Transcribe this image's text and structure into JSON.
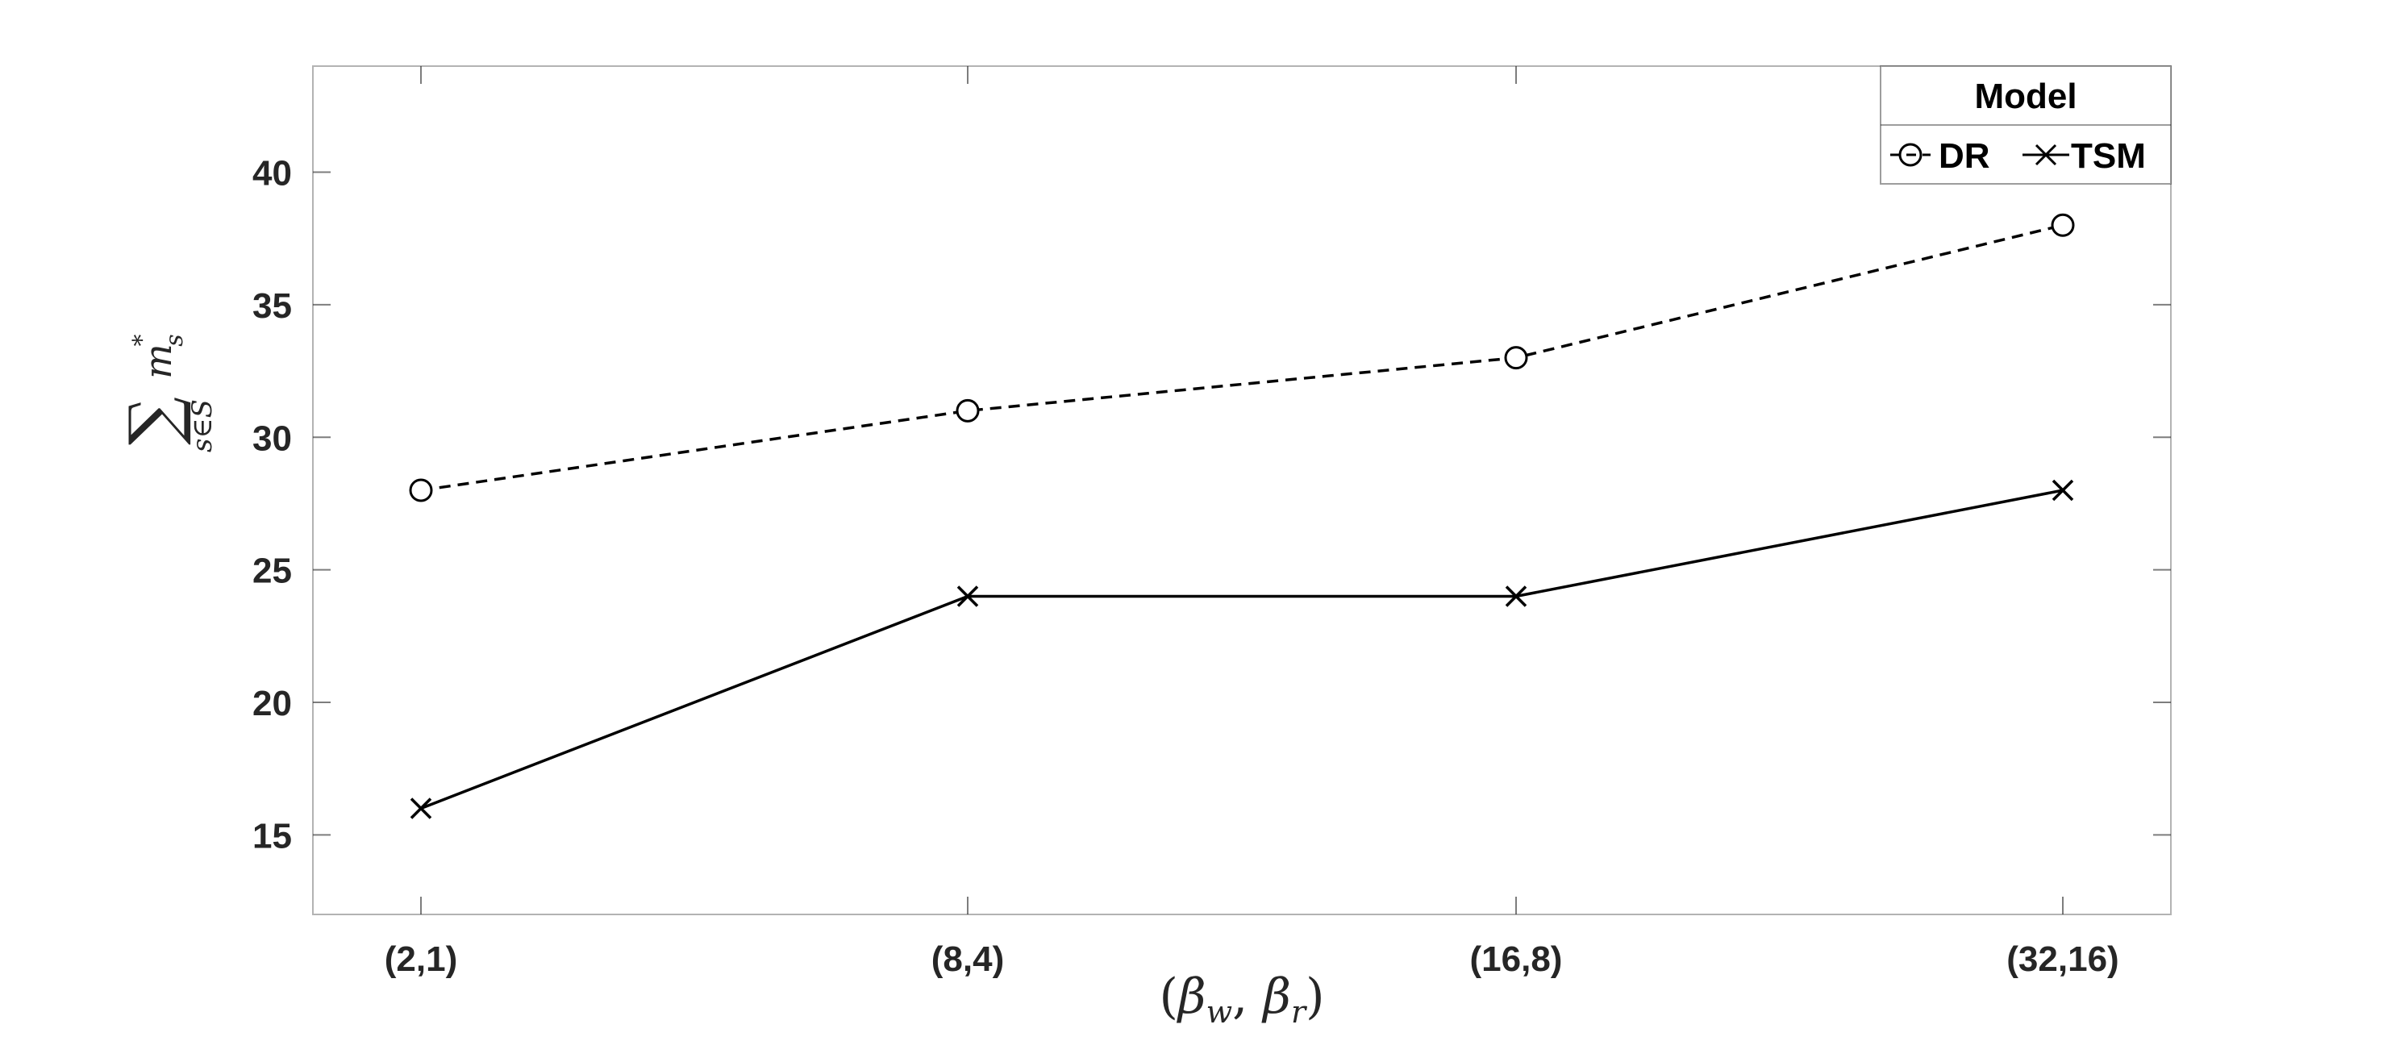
{
  "chart_data": {
    "type": "line",
    "categories": [
      "(2,1)",
      "(8,4)",
      "(16,8)",
      "(32,16)"
    ],
    "series": [
      {
        "name": "DR",
        "values": [
          28,
          31,
          33,
          38
        ],
        "marker": "circle",
        "line_style": "dashed",
        "color": "#000000"
      },
      {
        "name": "TSM",
        "values": [
          16,
          24,
          24,
          28
        ],
        "marker": "x",
        "line_style": "solid",
        "color": "#000000"
      }
    ],
    "title": "",
    "xlabel": "(β_w, β_r)",
    "ylabel": "Σ_{s∈S} m*_s",
    "ylim": [
      12,
      44
    ],
    "yticks": [
      15,
      20,
      25,
      30,
      35,
      40
    ],
    "legend": {
      "title": "Model",
      "placement": "top-right"
    },
    "grid": false
  }
}
